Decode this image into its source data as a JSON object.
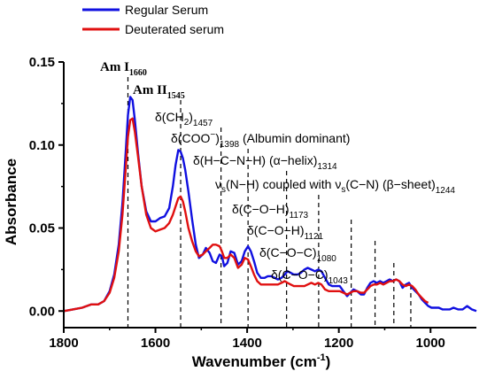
{
  "chart_data": {
    "type": "line",
    "xlabel": "Wavenumber (cm",
    "xlabel_sup": "-1",
    "xlabel_close": ")",
    "ylabel": "Absorbance",
    "xlim": [
      1800,
      900
    ],
    "ylim": [
      -0.01,
      0.15
    ],
    "x_reversed": true,
    "xticks": [
      1800,
      1600,
      1400,
      1200,
      1000
    ],
    "xtick_labels": [
      "1800",
      "1600",
      "1400",
      "1200",
      "1000"
    ],
    "yticks": [
      0.0,
      0.05,
      0.1,
      0.15
    ],
    "ytick_labels": [
      "0.00",
      "0.05",
      "0.10",
      "0.15"
    ],
    "legend": {
      "position": "top-left",
      "entries": [
        {
          "label": "Regular Serum",
          "color": "#1010e0"
        },
        {
          "label": "Deuterated serum",
          "color": "#e01010"
        }
      ]
    },
    "series": [
      {
        "name": "Regular Serum",
        "color": "#1010e0",
        "x": [
          1800,
          1780,
          1760,
          1740,
          1725,
          1712,
          1700,
          1690,
          1680,
          1672,
          1665,
          1660,
          1655,
          1650,
          1645,
          1638,
          1630,
          1620,
          1610,
          1600,
          1590,
          1580,
          1570,
          1562,
          1556,
          1550,
          1545,
          1540,
          1535,
          1528,
          1520,
          1512,
          1505,
          1497,
          1490,
          1482,
          1475,
          1468,
          1460,
          1455,
          1450,
          1443,
          1436,
          1428,
          1420,
          1412,
          1405,
          1398,
          1392,
          1385,
          1378,
          1370,
          1362,
          1355,
          1347,
          1340,
          1333,
          1325,
          1318,
          1312,
          1305,
          1298,
          1290,
          1283,
          1275,
          1268,
          1260,
          1252,
          1245,
          1238,
          1230,
          1222,
          1214,
          1206,
          1198,
          1190,
          1182,
          1175,
          1168,
          1160,
          1152,
          1145,
          1138,
          1131,
          1124,
          1117,
          1110,
          1103,
          1096,
          1089,
          1082,
          1075,
          1068,
          1061,
          1054,
          1047,
          1040,
          1033,
          1026,
          1019,
          1012,
          1005,
          998,
          990,
          982,
          974,
          966,
          958,
          950,
          940,
          930,
          920,
          910,
          900
        ],
        "y": [
          0.0,
          0.001,
          0.002,
          0.004,
          0.004,
          0.006,
          0.012,
          0.022,
          0.04,
          0.065,
          0.095,
          0.118,
          0.129,
          0.127,
          0.115,
          0.095,
          0.075,
          0.06,
          0.054,
          0.054,
          0.056,
          0.057,
          0.062,
          0.075,
          0.088,
          0.097,
          0.096,
          0.092,
          0.085,
          0.072,
          0.055,
          0.04,
          0.032,
          0.034,
          0.038,
          0.035,
          0.03,
          0.029,
          0.034,
          0.033,
          0.027,
          0.029,
          0.036,
          0.035,
          0.028,
          0.03,
          0.036,
          0.039,
          0.036,
          0.03,
          0.023,
          0.02,
          0.02,
          0.021,
          0.021,
          0.02,
          0.019,
          0.02,
          0.022,
          0.024,
          0.023,
          0.022,
          0.022,
          0.023,
          0.025,
          0.026,
          0.025,
          0.024,
          0.025,
          0.024,
          0.02,
          0.016,
          0.015,
          0.015,
          0.015,
          0.012,
          0.009,
          0.011,
          0.013,
          0.012,
          0.01,
          0.01,
          0.014,
          0.017,
          0.018,
          0.017,
          0.018,
          0.017,
          0.018,
          0.019,
          0.018,
          0.019,
          0.018,
          0.014,
          0.016,
          0.017,
          0.014,
          0.012,
          0.01,
          0.007,
          0.005,
          0.003,
          0.002,
          0.002,
          0.002,
          0.001,
          0.001,
          0.001,
          0.002,
          0.001,
          0.001,
          0.003,
          0.001,
          0.0
        ]
      },
      {
        "name": "Deuterated serum",
        "color": "#e01010",
        "x": [
          1800,
          1780,
          1760,
          1740,
          1725,
          1712,
          1700,
          1690,
          1680,
          1672,
          1665,
          1660,
          1655,
          1650,
          1645,
          1638,
          1630,
          1620,
          1610,
          1600,
          1590,
          1580,
          1570,
          1562,
          1556,
          1550,
          1545,
          1540,
          1535,
          1528,
          1520,
          1512,
          1505,
          1497,
          1490,
          1482,
          1475,
          1468,
          1460,
          1455,
          1450,
          1443,
          1436,
          1428,
          1420,
          1412,
          1405,
          1398,
          1392,
          1385,
          1378,
          1370,
          1362,
          1355,
          1347,
          1340,
          1333,
          1325,
          1318,
          1312,
          1305,
          1298,
          1290,
          1283,
          1275,
          1268,
          1260,
          1252,
          1245,
          1238,
          1230,
          1222,
          1214,
          1206,
          1198,
          1190,
          1182,
          1175,
          1168,
          1160,
          1152,
          1145,
          1138,
          1131,
          1124,
          1117,
          1110,
          1103,
          1096,
          1089,
          1082,
          1075,
          1068,
          1061,
          1054,
          1047,
          1040,
          1033,
          1026,
          1019,
          1012,
          1005
        ],
        "y": [
          0.0,
          0.001,
          0.002,
          0.004,
          0.004,
          0.006,
          0.011,
          0.02,
          0.036,
          0.058,
          0.085,
          0.105,
          0.115,
          0.116,
          0.108,
          0.093,
          0.075,
          0.058,
          0.05,
          0.048,
          0.049,
          0.05,
          0.053,
          0.058,
          0.063,
          0.068,
          0.069,
          0.066,
          0.06,
          0.05,
          0.042,
          0.036,
          0.033,
          0.034,
          0.036,
          0.038,
          0.04,
          0.04,
          0.039,
          0.036,
          0.032,
          0.032,
          0.034,
          0.032,
          0.026,
          0.028,
          0.032,
          0.031,
          0.027,
          0.022,
          0.018,
          0.016,
          0.016,
          0.016,
          0.016,
          0.016,
          0.016,
          0.017,
          0.018,
          0.017,
          0.016,
          0.015,
          0.015,
          0.015,
          0.015,
          0.016,
          0.017,
          0.016,
          0.017,
          0.016,
          0.013,
          0.012,
          0.012,
          0.012,
          0.012,
          0.011,
          0.01,
          0.011,
          0.012,
          0.012,
          0.011,
          0.011,
          0.013,
          0.015,
          0.016,
          0.016,
          0.017,
          0.016,
          0.017,
          0.018,
          0.018,
          0.019,
          0.018,
          0.016,
          0.015,
          0.016,
          0.015,
          0.013,
          0.01,
          0.008,
          0.006,
          0.005
        ]
      }
    ],
    "annotations": [
      {
        "x": 1660,
        "main": "Am I",
        "sub": "1660",
        "serif": true
      },
      {
        "x": 1545,
        "main": "Am II",
        "sub": "1545",
        "serif": true
      },
      {
        "x": 1457,
        "main": "δ(CH",
        "sub2": "2",
        "main2": ")",
        "sub": "1457"
      },
      {
        "x": 1398,
        "main": "δ(COO",
        "sup": "−",
        "main2": ")",
        "sub": "1398",
        "extra": " (Albumin dominant)"
      },
      {
        "x": 1314,
        "main": "δ(H−C−N−H) (α−helix)",
        "sub": "1314"
      },
      {
        "x": 1244,
        "main": "ν",
        "sub2": "s",
        "main2": "(N−H) coupled with ν",
        "sub3": "s",
        "main3": "(C−N) (β−sheet)",
        "sub": "1244"
      },
      {
        "x": 1173,
        "main": "δ(C−O−H)",
        "sub": "1173"
      },
      {
        "x": 1121,
        "main": "δ(C−O−H)",
        "sub": "1121"
      },
      {
        "x": 1080,
        "main": "δ(C−O−C)",
        "sub": "1080"
      },
      {
        "x": 1043,
        "main": "δ(C−O−C)",
        "sub": "1043"
      }
    ]
  }
}
